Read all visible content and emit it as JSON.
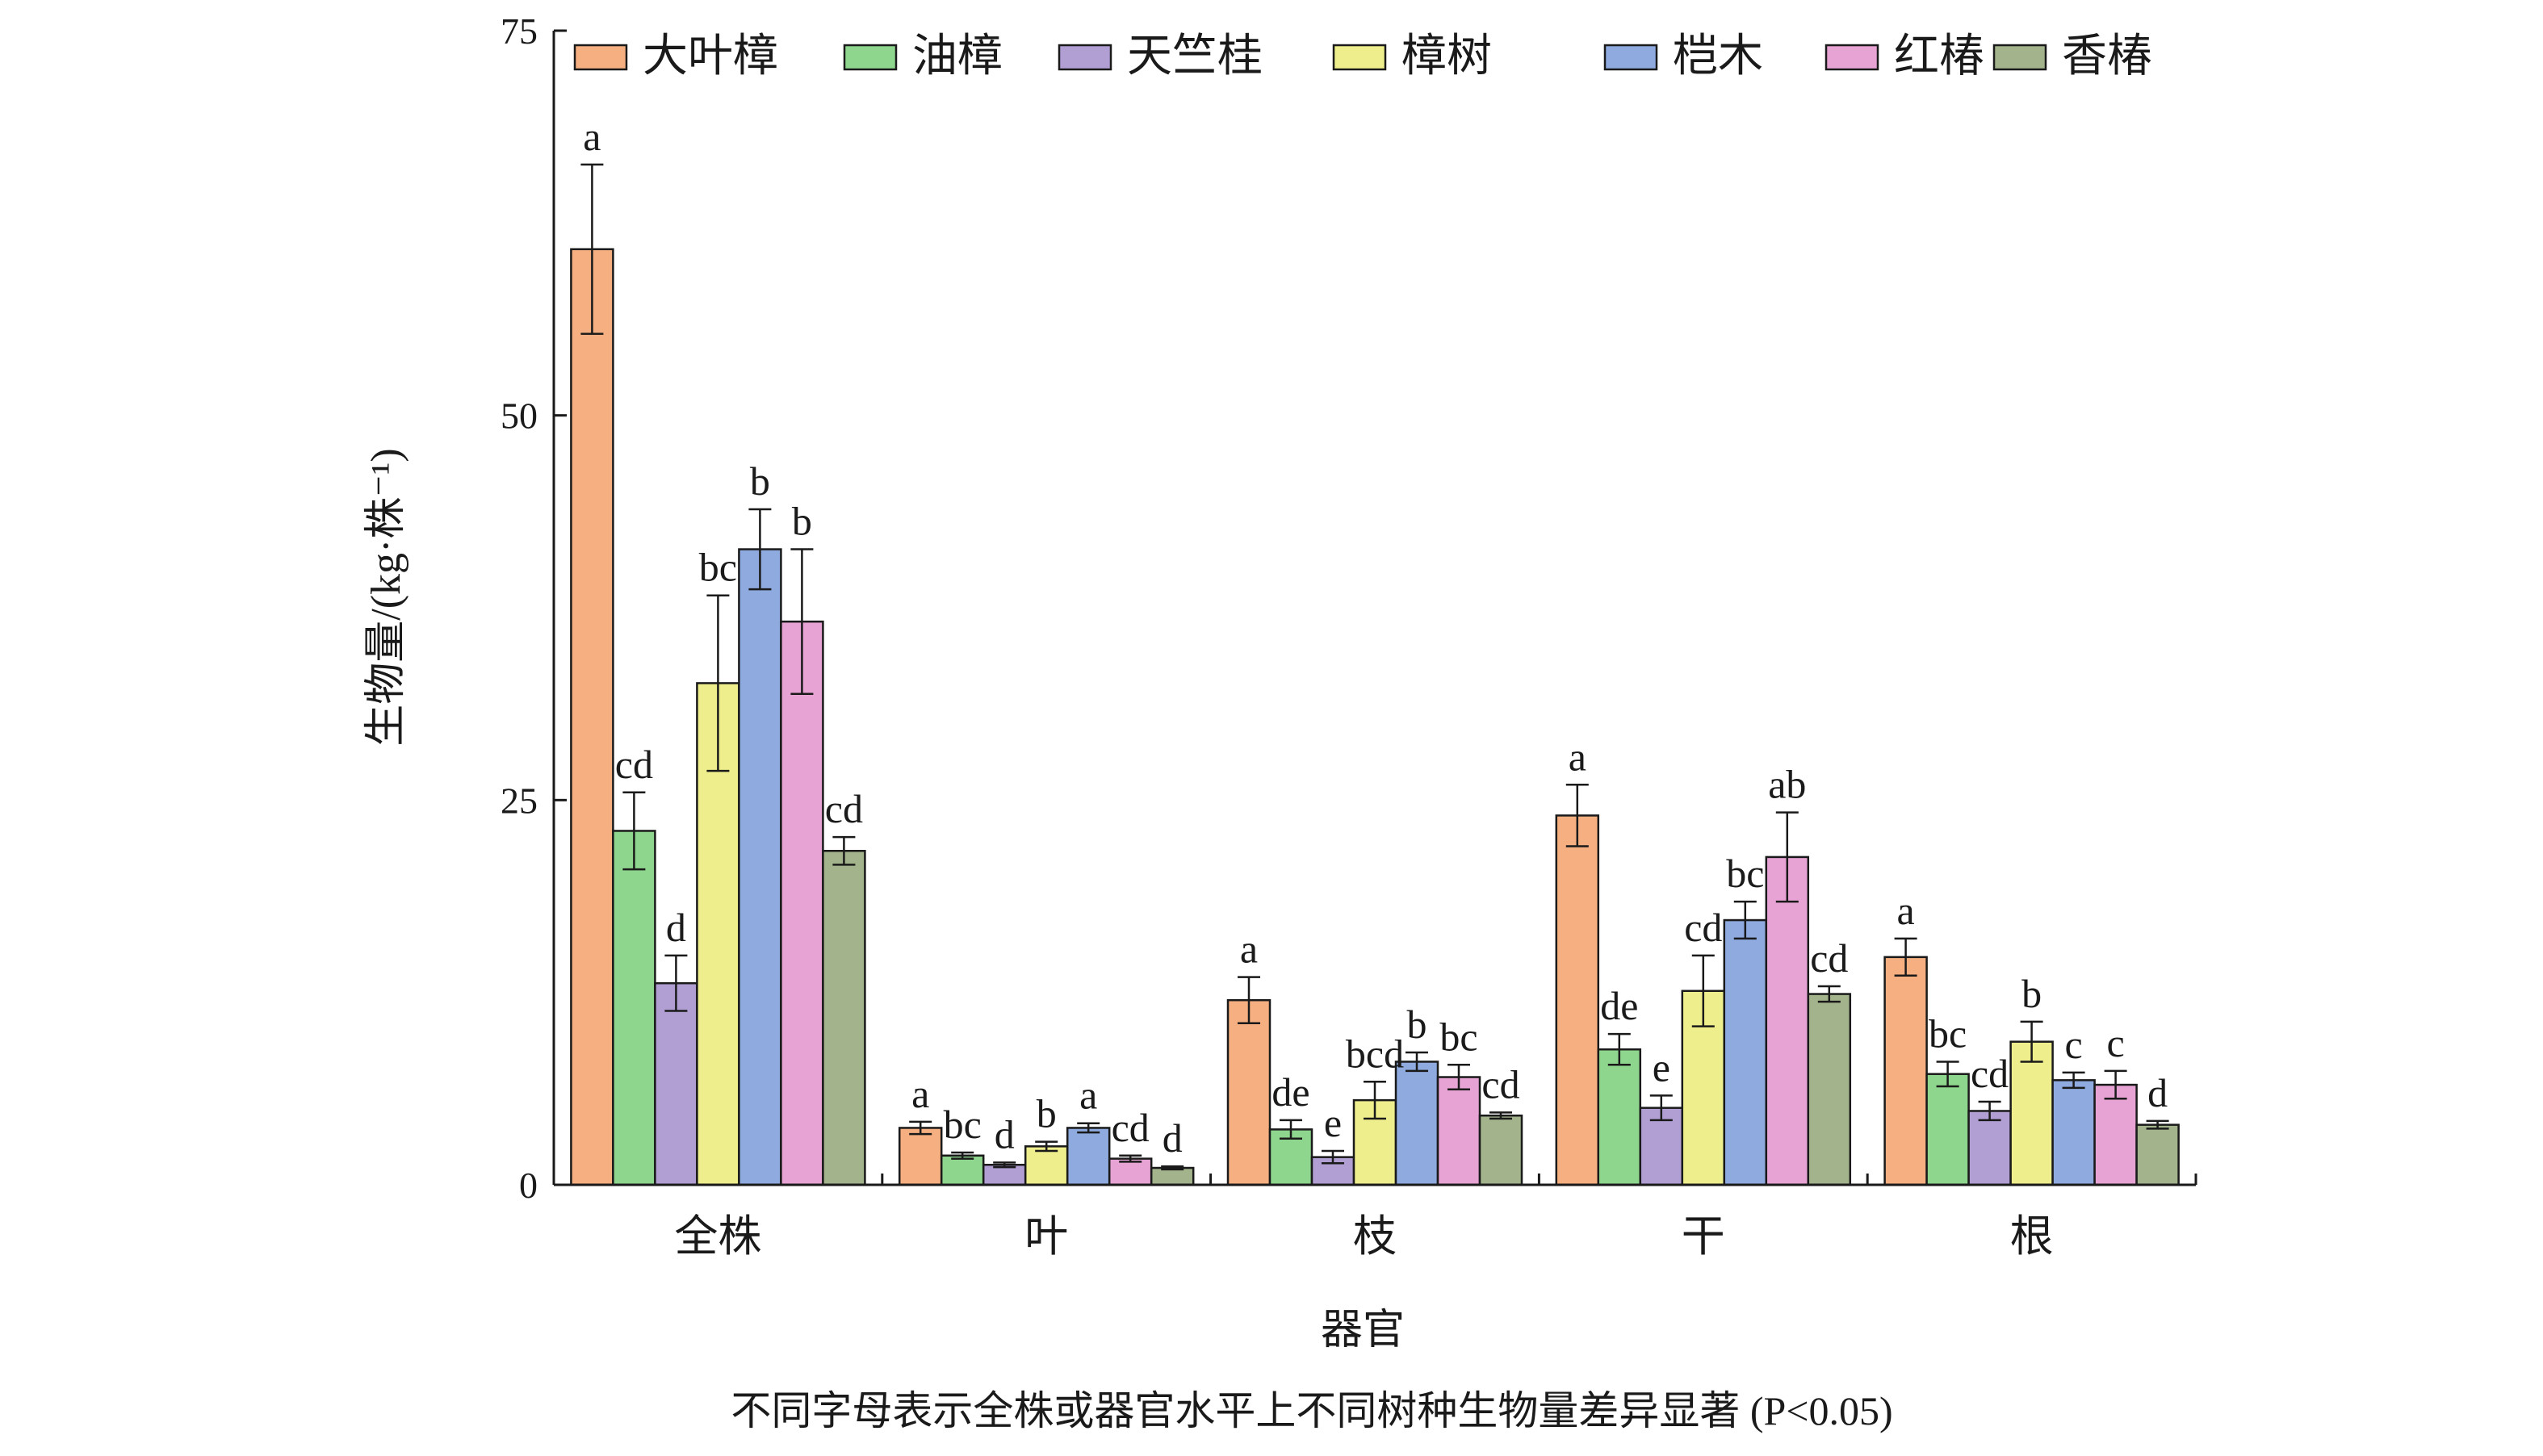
{
  "chart_data": {
    "type": "bar",
    "title": "",
    "xlabel": "器官",
    "ylabel": "生物量/(kg·株⁻¹)",
    "ylim": [
      0,
      75
    ],
    "yticks": [
      0,
      25,
      50,
      75
    ],
    "legend_position": "top",
    "categories": [
      "全株",
      "叶",
      "枝",
      "干",
      "根"
    ],
    "series": [
      {
        "name": "大叶樟",
        "color": "#F5AF80",
        "values": [
          60.8,
          3.7,
          12.0,
          24.0,
          14.8
        ],
        "errors": [
          5.5,
          0.4,
          1.5,
          2.0,
          1.2
        ],
        "labels": [
          "a",
          "a",
          "a",
          "a",
          "a"
        ]
      },
      {
        "name": "油樟",
        "color": "#8ED68E",
        "values": [
          23.0,
          1.9,
          3.6,
          8.8,
          7.2
        ],
        "errors": [
          2.5,
          0.2,
          0.6,
          1.0,
          0.8
        ],
        "labels": [
          "cd",
          "bc",
          "de",
          "de",
          "bc"
        ]
      },
      {
        "name": "天竺桂",
        "color": "#B19FD4",
        "values": [
          13.1,
          1.3,
          1.8,
          5.0,
          4.8
        ],
        "errors": [
          1.8,
          0.15,
          0.4,
          0.8,
          0.6
        ],
        "labels": [
          "d",
          "d",
          "e",
          "e",
          "cd"
        ]
      },
      {
        "name": "樟树",
        "color": "#EEEE8C",
        "values": [
          32.6,
          2.5,
          5.5,
          12.6,
          9.3
        ],
        "errors": [
          5.7,
          0.3,
          1.2,
          2.3,
          1.3
        ],
        "labels": [
          "bc",
          "b",
          "bcd",
          "cd",
          "b"
        ]
      },
      {
        "name": "桤木",
        "color": "#8EAADF",
        "values": [
          41.3,
          3.7,
          8.0,
          17.2,
          6.8
        ],
        "errors": [
          2.6,
          0.3,
          0.6,
          1.2,
          0.5
        ],
        "labels": [
          "b",
          "a",
          "b",
          "bc",
          "c"
        ]
      },
      {
        "name": "红椿",
        "color": "#E6A3D3",
        "values": [
          36.6,
          1.7,
          7.0,
          21.3,
          6.5
        ],
        "errors": [
          4.7,
          0.2,
          0.8,
          2.9,
          0.9
        ],
        "labels": [
          "b",
          "cd",
          "bc",
          "ab",
          "c"
        ]
      },
      {
        "name": "香椿",
        "color": "#A3B38C",
        "values": [
          21.7,
          1.1,
          4.5,
          12.4,
          3.9
        ],
        "errors": [
          0.9,
          0.1,
          0.2,
          0.5,
          0.25
        ],
        "labels": [
          "cd",
          "d",
          "cd",
          "cd",
          "d"
        ]
      }
    ],
    "note": "不同字母表示全株或器官水平上不同树种生物量差异显著 (P<0.05)"
  }
}
